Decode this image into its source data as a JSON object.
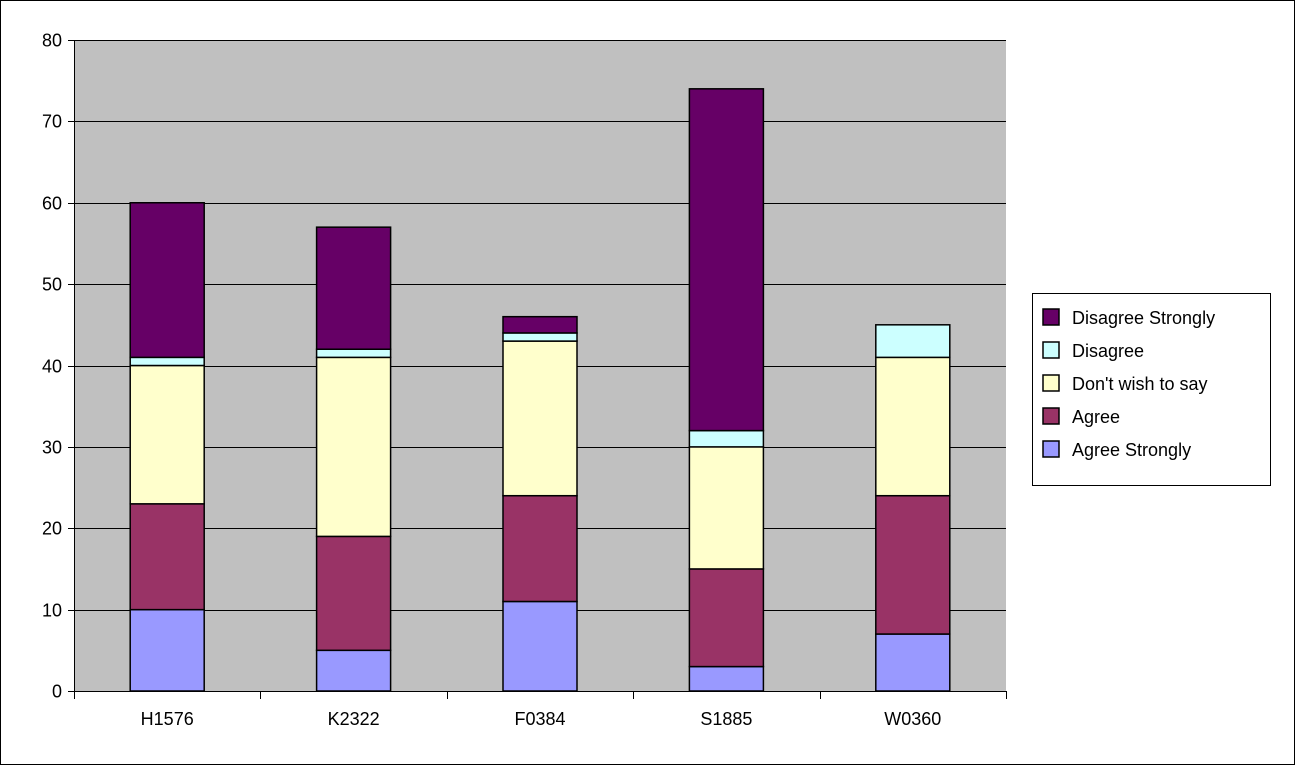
{
  "chart_data": {
    "type": "bar",
    "stacked": true,
    "title": "",
    "xlabel": "",
    "ylabel": "",
    "categories": [
      "H1576",
      "K2322",
      "F0384",
      "S1885",
      "W0360"
    ],
    "ylim": [
      0,
      80
    ],
    "yticks": [
      0,
      10,
      20,
      30,
      40,
      50,
      60,
      70,
      80
    ],
    "y_tick_labels": [
      "0",
      "10",
      "20",
      "30",
      "40",
      "50",
      "60",
      "70",
      "80"
    ],
    "grid": "horizontal",
    "legend_position": "right",
    "plot_background": "#c0c0c0",
    "series": [
      {
        "name": "Agree Strongly",
        "color": "#9999ff",
        "values": [
          10,
          5,
          11,
          3,
          7
        ]
      },
      {
        "name": "Agree",
        "color": "#993366",
        "values": [
          13,
          14,
          13,
          12,
          17
        ]
      },
      {
        "name": "Don't wish to say",
        "color": "#ffffcc",
        "values": [
          17,
          22,
          19,
          15,
          17
        ]
      },
      {
        "name": "Disagree",
        "color": "#ccffff",
        "values": [
          1,
          1,
          1,
          2,
          4
        ]
      },
      {
        "name": "Disagree Strongly",
        "color": "#660066",
        "values": [
          19,
          15,
          2,
          42,
          0
        ]
      }
    ],
    "legend_order": [
      "Disagree Strongly",
      "Disagree",
      "Don't wish to say",
      "Agree",
      "Agree Strongly"
    ]
  }
}
